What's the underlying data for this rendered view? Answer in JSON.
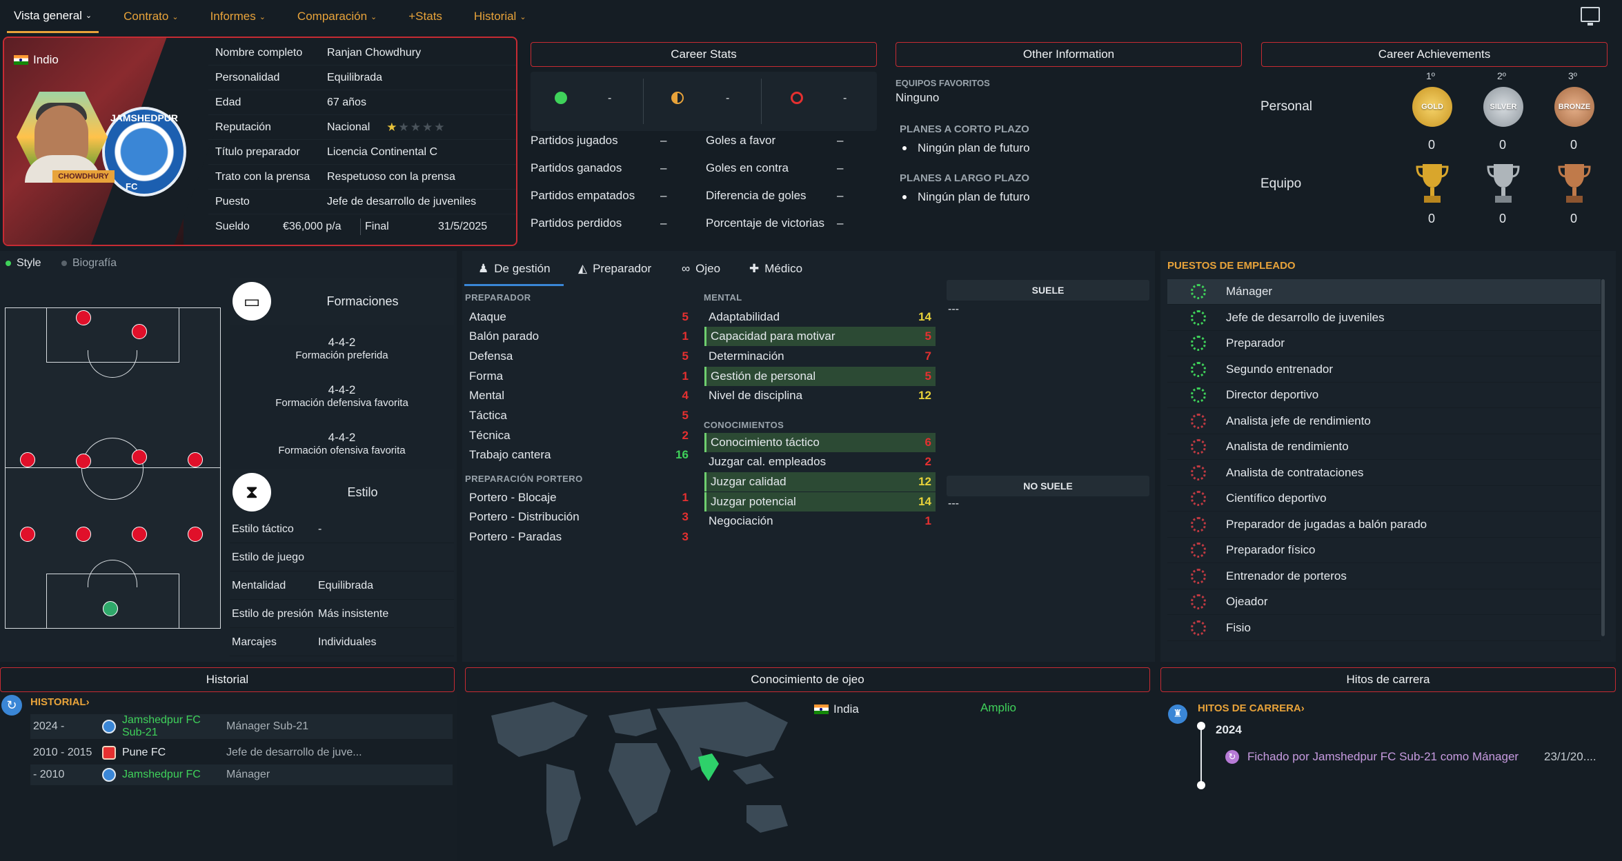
{
  "nav": {
    "items": [
      {
        "label": "Vista general",
        "active": true
      },
      {
        "label": "Contrato"
      },
      {
        "label": "Informes"
      },
      {
        "label": "Comparación"
      },
      {
        "label": "+Stats"
      },
      {
        "label": "Historial"
      }
    ]
  },
  "profile": {
    "nationality": "Indio",
    "ribbon": "CHOWDHURY",
    "crest_name": "JAMSHEDPUR",
    "crest_fc": "FC",
    "rows": [
      {
        "k": "Nombre completo",
        "v": "Ranjan Chowdhury"
      },
      {
        "k": "Personalidad",
        "v": "Equilibrada"
      },
      {
        "k": "Edad",
        "v": "67 años"
      },
      {
        "k": "Reputación",
        "v": "Nacional"
      },
      {
        "k": "Título preparador",
        "v": "Licencia Continental C"
      },
      {
        "k": "Trato con la prensa",
        "v": "Respetuoso con la prensa"
      },
      {
        "k": "Puesto",
        "v": "Jefe de desarrollo de juveniles"
      }
    ],
    "reputation_stars": 0.5,
    "salary_label": "Sueldo",
    "salary": "€36,000 p/a",
    "final_label": "Final",
    "final_date": "31/5/2025"
  },
  "career_stats": {
    "title": "Career Stats",
    "tops": [
      "-",
      "-",
      "-"
    ],
    "left": [
      {
        "k": "Partidos jugados",
        "v": "–"
      },
      {
        "k": "Partidos ganados",
        "v": "–"
      },
      {
        "k": "Partidos empatados",
        "v": "–"
      },
      {
        "k": "Partidos perdidos",
        "v": "–"
      }
    ],
    "right": [
      {
        "k": "Goles a favor",
        "v": "–"
      },
      {
        "k": "Goles en contra",
        "v": "–"
      },
      {
        "k": "Diferencia de goles",
        "v": "–"
      },
      {
        "k": "Porcentaje de victorias",
        "v": "–"
      }
    ],
    "colors": {
      "win": "#3fd25a",
      "draw": "#e8a33a",
      "loss": "#e53030"
    }
  },
  "other_info": {
    "title": "Other Information",
    "fav_label": "EQUIPOS FAVORITOS",
    "fav_value": "Ninguno",
    "short_label": "PLANES A CORTO PLAZO",
    "short_value": "Ningún plan de futuro",
    "long_label": "PLANES A LARGO PLAZO",
    "long_value": "Ningún plan de futuro"
  },
  "achievements": {
    "title": "Career Achievements",
    "ranks": [
      "1º",
      "2º",
      "3º"
    ],
    "medals": [
      "GOLD",
      "SILVER",
      "BRONZE"
    ],
    "personal_label": "Personal",
    "personal": [
      "0",
      "0",
      "0"
    ],
    "team_label": "Equipo",
    "team": [
      "0",
      "0",
      "0"
    ]
  },
  "style_tabs": {
    "style": "Style",
    "bio": "Biografía"
  },
  "formations": {
    "title": "Formaciones",
    "items": [
      {
        "value": "4-4-2",
        "label": "Formación preferida"
      },
      {
        "value": "4-4-2",
        "label": "Formación defensiva favorita"
      },
      {
        "value": "4-4-2",
        "label": "Formación ofensiva favorita"
      }
    ]
  },
  "style": {
    "title": "Estilo",
    "rows": [
      {
        "k": "Estilo táctico",
        "v": "-"
      },
      {
        "k": "Estilo de juego",
        "v": ""
      },
      {
        "k": "Mentalidad",
        "v": "Equilibrada"
      },
      {
        "k": "Estilo de presión",
        "v": "Más insistente"
      },
      {
        "k": "Marcajes",
        "v": "Individuales"
      }
    ]
  },
  "attr_tabs": {
    "t1": "De gestión",
    "t2": "Preparador",
    "t3": "Ojeo",
    "t4": "Médico"
  },
  "attributes": {
    "preparador_label": "PREPARADOR",
    "preparador": [
      {
        "k": "Ataque",
        "v": "5",
        "c": "red"
      },
      {
        "k": "Balón parado",
        "v": "1",
        "c": "red"
      },
      {
        "k": "Defensa",
        "v": "5",
        "c": "red"
      },
      {
        "k": "Forma",
        "v": "1",
        "c": "red"
      },
      {
        "k": "Mental",
        "v": "4",
        "c": "red"
      },
      {
        "k": "Táctica",
        "v": "5",
        "c": "red"
      },
      {
        "k": "Técnica",
        "v": "2",
        "c": "red"
      },
      {
        "k": "Trabajo cantera",
        "v": "16",
        "c": "grn"
      }
    ],
    "portero_label": "PREPARACIÓN PORTERO",
    "portero": [
      {
        "k": "Portero - Blocaje",
        "v": "1",
        "c": "red"
      },
      {
        "k": "Portero - Distribución",
        "v": "3",
        "c": "red"
      },
      {
        "k": "Portero - Paradas",
        "v": "3",
        "c": "red"
      }
    ],
    "mental_label": "MENTAL",
    "mental": [
      {
        "k": "Adaptabilidad",
        "v": "14",
        "c": "yel",
        "hl": false
      },
      {
        "k": "Capacidad para motivar",
        "v": "5",
        "c": "red",
        "hl": true
      },
      {
        "k": "Determinación",
        "v": "7",
        "c": "red",
        "hl": false
      },
      {
        "k": "Gestión de personal",
        "v": "5",
        "c": "red",
        "hl": true
      },
      {
        "k": "Nivel de disciplina",
        "v": "12",
        "c": "yel",
        "hl": false
      }
    ],
    "conoc_label": "CONOCIMIENTOS",
    "conoc": [
      {
        "k": "Conocimiento táctico",
        "v": "6",
        "c": "red",
        "hl": true
      },
      {
        "k": "Juzgar cal. empleados",
        "v": "2",
        "c": "red",
        "hl": false
      },
      {
        "k": "Juzgar calidad",
        "v": "12",
        "c": "yel",
        "hl": true
      },
      {
        "k": "Juzgar potencial",
        "v": "14",
        "c": "yel",
        "hl": true
      },
      {
        "k": "Negociación",
        "v": "1",
        "c": "red",
        "hl": false
      }
    ],
    "suele": "SUELE",
    "suele_val": "---",
    "no_suele": "NO SUELE",
    "no_suele_val": "---"
  },
  "roles": {
    "title": "PUESTOS DE EMPLEADO",
    "items": [
      {
        "label": "Mánager",
        "ok": true
      },
      {
        "label": "Jefe de desarrollo de juveniles",
        "ok": true
      },
      {
        "label": "Preparador",
        "ok": true
      },
      {
        "label": "Segundo entrenador",
        "ok": true
      },
      {
        "label": "Director deportivo",
        "ok": true
      },
      {
        "label": "Analista jefe de rendimiento",
        "ok": false
      },
      {
        "label": "Analista de rendimiento",
        "ok": false
      },
      {
        "label": "Analista de contrataciones",
        "ok": false
      },
      {
        "label": "Científico deportivo",
        "ok": false
      },
      {
        "label": "Preparador de jugadas a balón parado",
        "ok": false
      },
      {
        "label": "Preparador físico",
        "ok": false
      },
      {
        "label": "Entrenador de porteros",
        "ok": false
      },
      {
        "label": "Ojeador",
        "ok": false
      },
      {
        "label": "Fisio",
        "ok": false
      }
    ]
  },
  "historial": {
    "title": "Historial",
    "link": "HISTORIAL",
    "rows": [
      {
        "yr": "2024 -",
        "club": "Jamshedpur FC Sub-21",
        "pos": "Mánager Sub-21",
        "green": true
      },
      {
        "yr": "2010 - 2015",
        "club": "Pune FC",
        "pos": "Jefe de desarrollo de juve...",
        "green": false
      },
      {
        "yr": " - 2010",
        "club": "Jamshedpur FC",
        "pos": "Mánager",
        "green": true
      }
    ]
  },
  "scouting": {
    "title": "Conocimiento de ojeo",
    "country": "India",
    "level": "Amplio"
  },
  "milestones": {
    "title": "Hitos de carrera",
    "link": "HITOS DE CARRERA",
    "year": "2024",
    "event": "Fichado por Jamshedpur FC Sub-21 como Mánager",
    "date": "23/1/20...."
  }
}
